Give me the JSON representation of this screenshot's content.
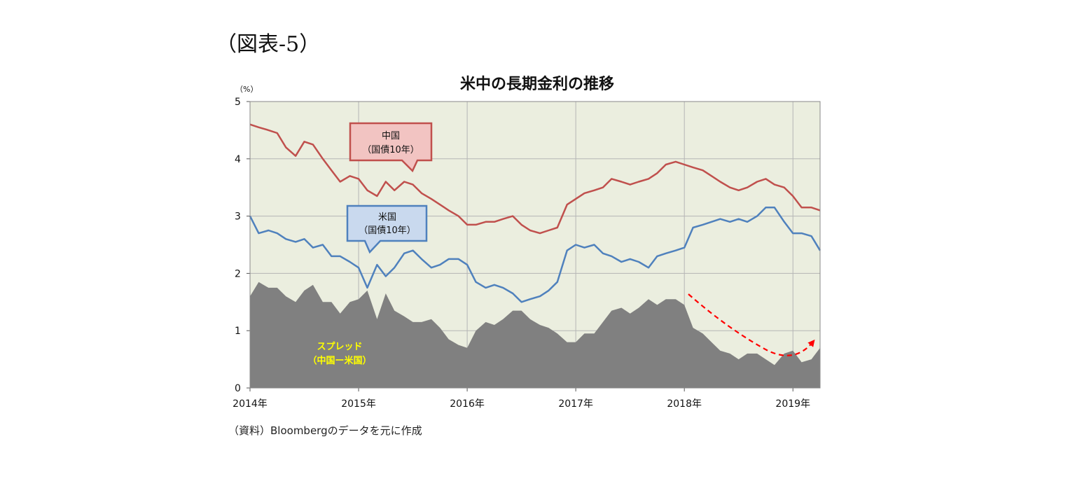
{
  "figure_label": "（図表-5）",
  "source_note": "（資料）Bloombergのデータを元に作成",
  "chart_data": {
    "type": "line",
    "title": "米中の長期金利の推移",
    "unit_label": "（%）",
    "ylim": [
      0,
      5
    ],
    "y_ticks": [
      "0",
      "1",
      "2",
      "3",
      "4",
      "5"
    ],
    "xlim": [
      2014.0,
      2019.25
    ],
    "x_ticks": [
      {
        "x": 2014,
        "label": "2014年"
      },
      {
        "x": 2015,
        "label": "2015年"
      },
      {
        "x": 2016,
        "label": "2016年"
      },
      {
        "x": 2017,
        "label": "2017年"
      },
      {
        "x": 2018,
        "label": "2018年"
      },
      {
        "x": 2019,
        "label": "2019年"
      }
    ],
    "grid": true,
    "colors": {
      "plot_bg": "#ebeedf",
      "china": "#c0504d",
      "us": "#4f81bd",
      "spread": "#808080",
      "trend_arrow": "#ff0000",
      "spread_label": "#ffff00",
      "china_callout_fill": "#f2c4c2",
      "us_callout_fill": "#c9d9ee"
    },
    "callouts": {
      "china": {
        "line1": "中国",
        "line2": "（国債10年）"
      },
      "us": {
        "line1": "米国",
        "line2": "（国債10年）"
      },
      "spread": {
        "line1": "スプレッド",
        "line2": "（中国ー米国）"
      }
    },
    "series": [
      {
        "name": "中国",
        "type": "line",
        "x": [
          2014.0,
          2014.08,
          2014.17,
          2014.25,
          2014.33,
          2014.42,
          2014.5,
          2014.58,
          2014.67,
          2014.75,
          2014.83,
          2014.92,
          2015.0,
          2015.08,
          2015.17,
          2015.25,
          2015.33,
          2015.42,
          2015.5,
          2015.58,
          2015.67,
          2015.75,
          2015.83,
          2015.92,
          2016.0,
          2016.08,
          2016.17,
          2016.25,
          2016.33,
          2016.42,
          2016.5,
          2016.58,
          2016.67,
          2016.75,
          2016.83,
          2016.92,
          2017.0,
          2017.08,
          2017.17,
          2017.25,
          2017.33,
          2017.42,
          2017.5,
          2017.58,
          2017.67,
          2017.75,
          2017.83,
          2017.92,
          2018.0,
          2018.08,
          2018.17,
          2018.25,
          2018.33,
          2018.42,
          2018.5,
          2018.58,
          2018.67,
          2018.75,
          2018.83,
          2018.92,
          2019.0,
          2019.08,
          2019.17,
          2019.25
        ],
        "values": [
          4.6,
          4.55,
          4.5,
          4.45,
          4.2,
          4.05,
          4.3,
          4.25,
          4.0,
          3.8,
          3.6,
          3.7,
          3.65,
          3.45,
          3.35,
          3.6,
          3.45,
          3.6,
          3.55,
          3.4,
          3.3,
          3.2,
          3.1,
          3.0,
          2.85,
          2.85,
          2.9,
          2.9,
          2.95,
          3.0,
          2.85,
          2.75,
          2.7,
          2.75,
          2.8,
          3.2,
          3.3,
          3.4,
          3.45,
          3.5,
          3.65,
          3.6,
          3.55,
          3.6,
          3.65,
          3.75,
          3.9,
          3.95,
          3.9,
          3.85,
          3.8,
          3.7,
          3.6,
          3.5,
          3.45,
          3.5,
          3.6,
          3.65,
          3.55,
          3.5,
          3.35,
          3.15,
          3.15,
          3.1
        ]
      },
      {
        "name": "米国",
        "type": "line",
        "x": [
          2014.0,
          2014.08,
          2014.17,
          2014.25,
          2014.33,
          2014.42,
          2014.5,
          2014.58,
          2014.67,
          2014.75,
          2014.83,
          2014.92,
          2015.0,
          2015.08,
          2015.17,
          2015.25,
          2015.33,
          2015.42,
          2015.5,
          2015.58,
          2015.67,
          2015.75,
          2015.83,
          2015.92,
          2016.0,
          2016.08,
          2016.17,
          2016.25,
          2016.33,
          2016.42,
          2016.5,
          2016.58,
          2016.67,
          2016.75,
          2016.83,
          2016.92,
          2017.0,
          2017.08,
          2017.17,
          2017.25,
          2017.33,
          2017.42,
          2017.5,
          2017.58,
          2017.67,
          2017.75,
          2017.83,
          2017.92,
          2018.0,
          2018.08,
          2018.17,
          2018.25,
          2018.33,
          2018.42,
          2018.5,
          2018.58,
          2018.67,
          2018.75,
          2018.83,
          2018.92,
          2019.0,
          2019.08,
          2019.17,
          2019.25
        ],
        "values": [
          3.0,
          2.7,
          2.75,
          2.7,
          2.6,
          2.55,
          2.6,
          2.45,
          2.5,
          2.3,
          2.3,
          2.2,
          2.1,
          1.75,
          2.15,
          1.95,
          2.1,
          2.35,
          2.4,
          2.25,
          2.1,
          2.15,
          2.25,
          2.25,
          2.15,
          1.85,
          1.75,
          1.8,
          1.75,
          1.65,
          1.5,
          1.55,
          1.6,
          1.7,
          1.85,
          2.4,
          2.5,
          2.45,
          2.5,
          2.35,
          2.3,
          2.2,
          2.25,
          2.2,
          2.1,
          2.3,
          2.35,
          2.4,
          2.45,
          2.8,
          2.85,
          2.9,
          2.95,
          2.9,
          2.95,
          2.9,
          3.0,
          3.15,
          3.15,
          2.9,
          2.7,
          2.7,
          2.65,
          2.4
        ]
      },
      {
        "name": "スプレッド（中国ー米国）",
        "type": "area",
        "x": [
          2014.0,
          2014.08,
          2014.17,
          2014.25,
          2014.33,
          2014.42,
          2014.5,
          2014.58,
          2014.67,
          2014.75,
          2014.83,
          2014.92,
          2015.0,
          2015.08,
          2015.17,
          2015.25,
          2015.33,
          2015.42,
          2015.5,
          2015.58,
          2015.67,
          2015.75,
          2015.83,
          2015.92,
          2016.0,
          2016.08,
          2016.17,
          2016.25,
          2016.33,
          2016.42,
          2016.5,
          2016.58,
          2016.67,
          2016.75,
          2016.83,
          2016.92,
          2017.0,
          2017.08,
          2017.17,
          2017.25,
          2017.33,
          2017.42,
          2017.5,
          2017.58,
          2017.67,
          2017.75,
          2017.83,
          2017.92,
          2018.0,
          2018.08,
          2018.17,
          2018.25,
          2018.33,
          2018.42,
          2018.5,
          2018.58,
          2018.67,
          2018.75,
          2018.83,
          2018.92,
          2019.0,
          2019.08,
          2019.17,
          2019.25
        ],
        "values": [
          1.6,
          1.85,
          1.75,
          1.75,
          1.6,
          1.5,
          1.7,
          1.8,
          1.5,
          1.5,
          1.3,
          1.5,
          1.55,
          1.7,
          1.2,
          1.65,
          1.35,
          1.25,
          1.15,
          1.15,
          1.2,
          1.05,
          0.85,
          0.75,
          0.7,
          1.0,
          1.15,
          1.1,
          1.2,
          1.35,
          1.35,
          1.2,
          1.1,
          1.05,
          0.95,
          0.8,
          0.8,
          0.95,
          0.95,
          1.15,
          1.35,
          1.4,
          1.3,
          1.4,
          1.55,
          1.45,
          1.55,
          1.55,
          1.45,
          1.05,
          0.95,
          0.8,
          0.65,
          0.6,
          0.5,
          0.6,
          0.6,
          0.5,
          0.4,
          0.6,
          0.65,
          0.45,
          0.5,
          0.7
        ]
      }
    ]
  }
}
